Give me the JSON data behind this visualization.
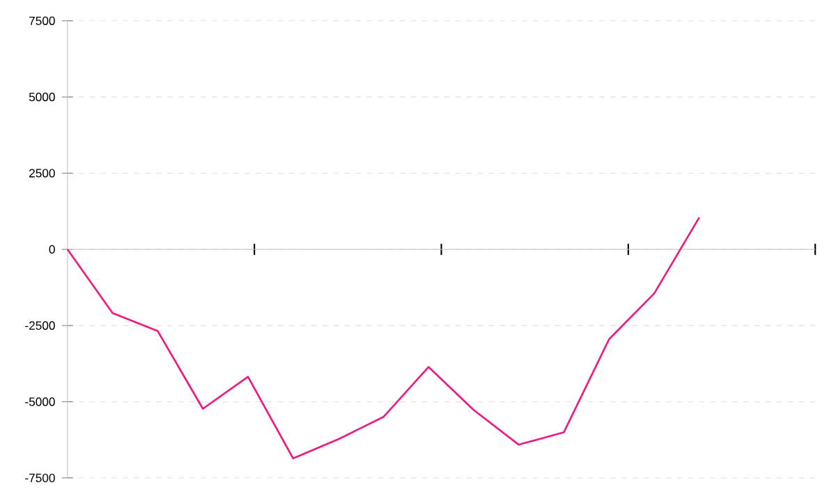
{
  "chart_data": {
    "type": "line",
    "categories": [
      null,
      null,
      null,
      null,
      null,
      null,
      null,
      null,
      null,
      null,
      null,
      null,
      null,
      null,
      null
    ],
    "values": [
      0,
      -2090,
      -2680,
      -5230,
      -4180,
      -6860,
      -6230,
      -5500,
      -3860,
      -5270,
      -6410,
      -6000,
      -2950,
      -1450,
      1050
    ],
    "color": "#ee1a82",
    "ylim": [
      -7500,
      7500
    ],
    "yticks": [
      -7500,
      -5000,
      -2500,
      0,
      2500,
      5000,
      7500
    ],
    "grid": "y",
    "tick_labels": "y",
    "marker": "none",
    "line_style": "solid"
  }
}
